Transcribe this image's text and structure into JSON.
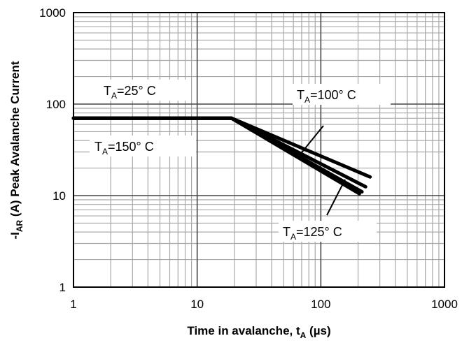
{
  "chart_data": {
    "type": "line",
    "x_scale": "log",
    "y_scale": "log",
    "xlim": [
      1,
      1000
    ],
    "ylim": [
      1,
      1000
    ],
    "x_ticks": [
      "1",
      "10",
      "100",
      "1000"
    ],
    "y_ticks": [
      "1",
      "10",
      "100",
      "1000"
    ],
    "grid": true,
    "xlabel": {
      "text": "Time in avalanche, t",
      "sub": "A",
      "unit": " (µs)"
    },
    "ylabel": {
      "prefix": "-I",
      "sub": "AR",
      "text": " (A) Peak Avalanche Current"
    },
    "series": [
      {
        "name": "TA=25° C",
        "points": [
          [
            1,
            70
          ],
          [
            19,
            70
          ],
          [
            250,
            16
          ]
        ]
      },
      {
        "name": "TA=100° C",
        "points": [
          [
            1,
            70
          ],
          [
            19,
            70
          ],
          [
            230,
            12.5
          ]
        ]
      },
      {
        "name": "TA=125° C",
        "points": [
          [
            1,
            70
          ],
          [
            19,
            70
          ],
          [
            215,
            11
          ]
        ]
      },
      {
        "name": "TA=150° C",
        "points": [
          [
            1,
            70
          ],
          [
            19,
            70
          ],
          [
            205,
            10.5
          ]
        ]
      }
    ],
    "annotations": [
      {
        "id": "ta25",
        "main": "T",
        "sub": "A",
        "rest": "=25°  C"
      },
      {
        "id": "ta100",
        "main": "T",
        "sub": "A",
        "rest": "=100°  C"
      },
      {
        "id": "ta150",
        "main": "T",
        "sub": "A",
        "rest": "=150°  C"
      },
      {
        "id": "ta125",
        "main": "T",
        "sub": "A",
        "rest": "=125°  C"
      }
    ]
  }
}
